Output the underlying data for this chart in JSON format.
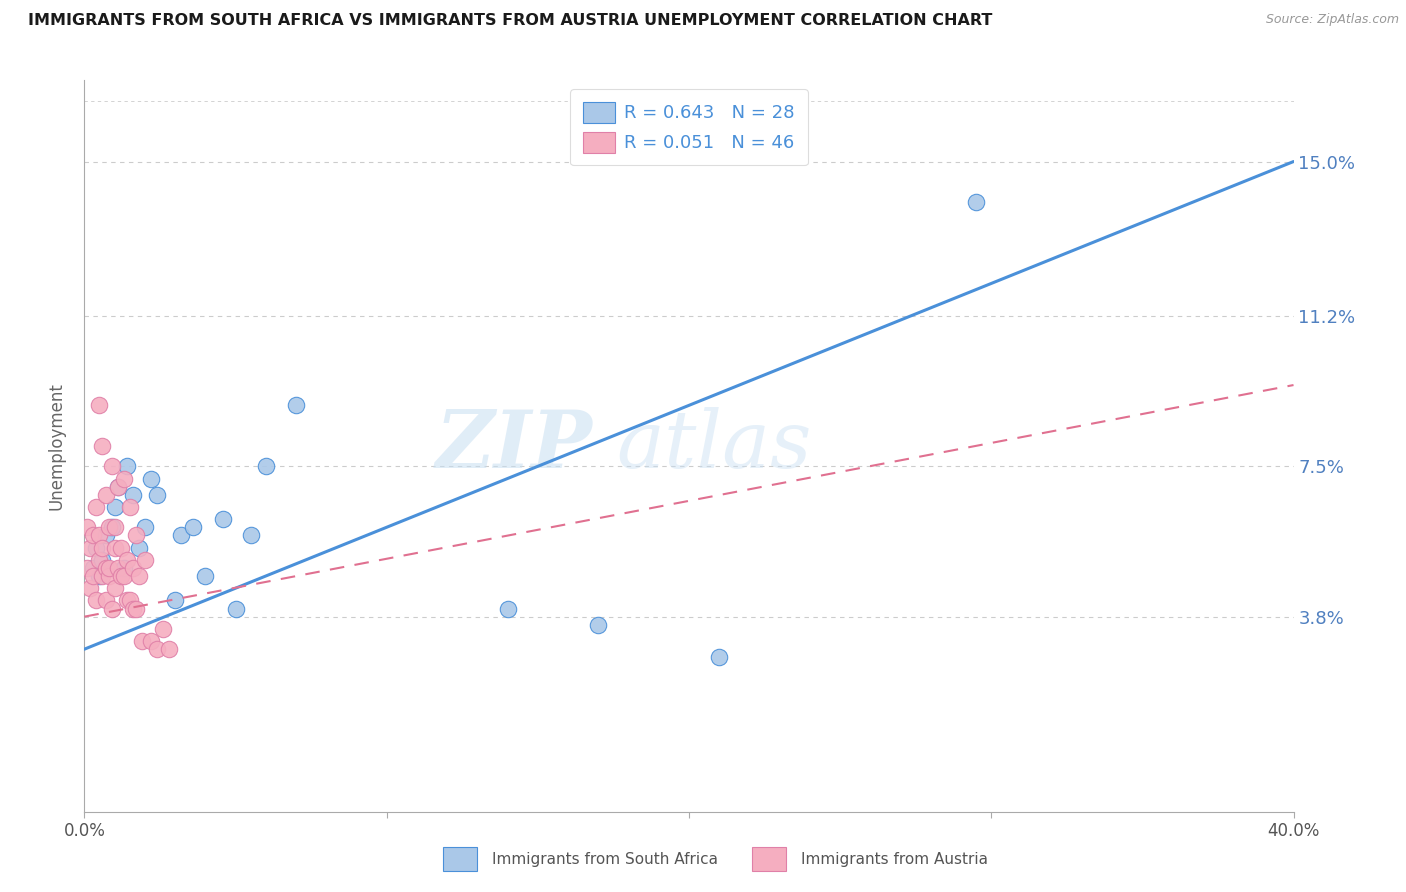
{
  "title": "IMMIGRANTS FROM SOUTH AFRICA VS IMMIGRANTS FROM AUSTRIA UNEMPLOYMENT CORRELATION CHART",
  "source": "Source: ZipAtlas.com",
  "ylabel": "Unemployment",
  "yticks": [
    0.038,
    0.075,
    0.112,
    0.15
  ],
  "ytick_labels": [
    "3.8%",
    "7.5%",
    "11.2%",
    "15.0%"
  ],
  "xlim": [
    0.0,
    0.4
  ],
  "ylim": [
    -0.01,
    0.17
  ],
  "r_south_africa": 0.643,
  "n_south_africa": 28,
  "r_austria": 0.051,
  "n_austria": 46,
  "color_south_africa": "#aac8e8",
  "color_austria": "#f5aec0",
  "trendline_color_south_africa": "#4a90d9",
  "trendline_color_austria": "#e07090",
  "sa_trendline": [
    0.03,
    0.15
  ],
  "at_trendline_y0": 0.04,
  "at_trendline_y1": 0.1,
  "south_africa_x": [
    0.003,
    0.004,
    0.005,
    0.006,
    0.007,
    0.009,
    0.01,
    0.011,
    0.013,
    0.014,
    0.016,
    0.018,
    0.02,
    0.022,
    0.024,
    0.03,
    0.032,
    0.036,
    0.04,
    0.046,
    0.05,
    0.055,
    0.06,
    0.07,
    0.14,
    0.17,
    0.21,
    0.295
  ],
  "south_africa_y": [
    0.05,
    0.055,
    0.048,
    0.052,
    0.058,
    0.06,
    0.065,
    0.07,
    0.05,
    0.075,
    0.068,
    0.055,
    0.06,
    0.072,
    0.068,
    0.042,
    0.058,
    0.06,
    0.048,
    0.062,
    0.04,
    0.058,
    0.075,
    0.09,
    0.04,
    0.036,
    0.028,
    0.14
  ],
  "austria_x": [
    0.001,
    0.001,
    0.002,
    0.002,
    0.003,
    0.003,
    0.004,
    0.004,
    0.005,
    0.005,
    0.005,
    0.006,
    0.006,
    0.006,
    0.007,
    0.007,
    0.007,
    0.008,
    0.008,
    0.008,
    0.009,
    0.009,
    0.01,
    0.01,
    0.01,
    0.011,
    0.011,
    0.012,
    0.012,
    0.013,
    0.013,
    0.014,
    0.014,
    0.015,
    0.015,
    0.016,
    0.016,
    0.017,
    0.017,
    0.018,
    0.019,
    0.02,
    0.022,
    0.024,
    0.026,
    0.028
  ],
  "austria_y": [
    0.05,
    0.06,
    0.045,
    0.055,
    0.048,
    0.058,
    0.042,
    0.065,
    0.052,
    0.058,
    0.09,
    0.048,
    0.055,
    0.08,
    0.042,
    0.05,
    0.068,
    0.048,
    0.06,
    0.05,
    0.04,
    0.075,
    0.045,
    0.055,
    0.06,
    0.05,
    0.07,
    0.048,
    0.055,
    0.048,
    0.072,
    0.042,
    0.052,
    0.042,
    0.065,
    0.04,
    0.05,
    0.04,
    0.058,
    0.048,
    0.032,
    0.052,
    0.032,
    0.03,
    0.035,
    0.03
  ],
  "watermark_zip": "ZIP",
  "watermark_atlas": "atlas",
  "background_color": "#ffffff",
  "grid_color": "#cccccc",
  "axis_color": "#5080c0",
  "legend_color": "#4a90d9",
  "spine_color": "#aaaaaa"
}
